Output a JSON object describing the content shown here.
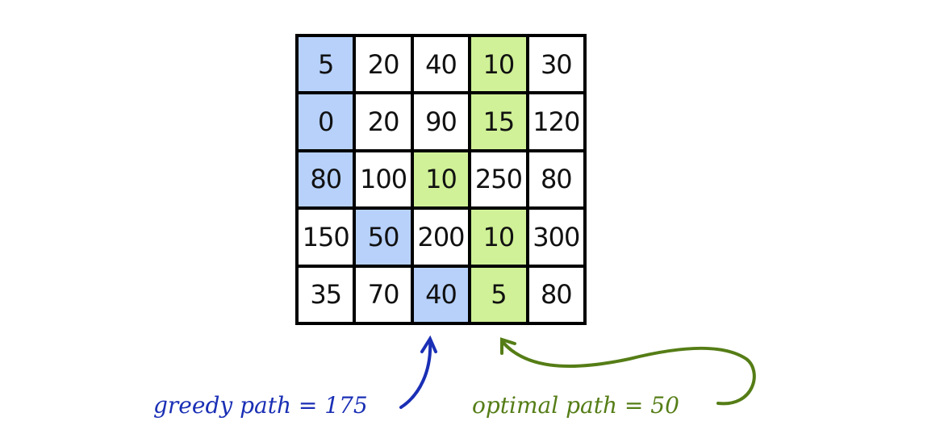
{
  "grid": [
    [
      5,
      20,
      40,
      10,
      30
    ],
    [
      0,
      20,
      90,
      15,
      120
    ],
    [
      80,
      100,
      10,
      250,
      80
    ],
    [
      150,
      50,
      200,
      10,
      300
    ],
    [
      35,
      70,
      40,
      5,
      80
    ]
  ],
  "greedy_cells": [
    [
      0,
      0
    ],
    [
      1,
      0
    ],
    [
      2,
      0
    ],
    [
      3,
      1
    ],
    [
      4,
      2
    ]
  ],
  "optimal_cells": [
    [
      0,
      3
    ],
    [
      1,
      3
    ],
    [
      2,
      2
    ],
    [
      3,
      3
    ],
    [
      4,
      3
    ]
  ],
  "colors": {
    "greedy_fill": "#b7d1fb",
    "optimal_fill": "#d0f197",
    "greedy_ink": "#1a2fb5",
    "optimal_ink": "#557d16"
  },
  "annotations": {
    "greedy": "greedy path = 175",
    "optimal": "optimal path = 50"
  }
}
